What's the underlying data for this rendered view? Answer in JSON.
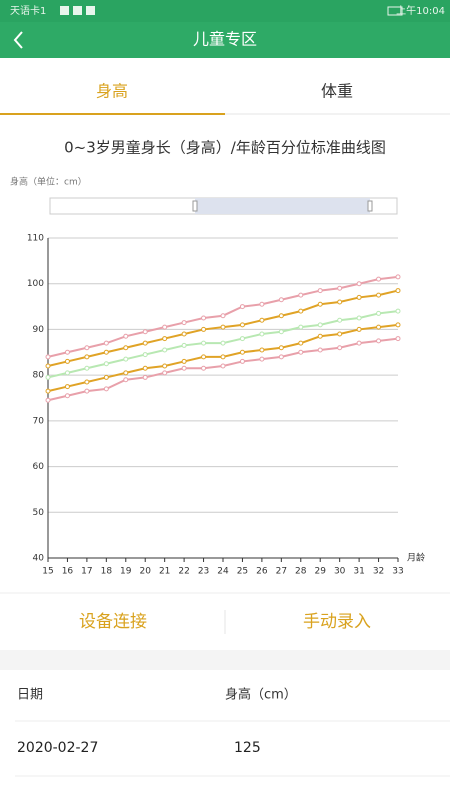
{
  "status_bar": {
    "carrier": "天语卡1",
    "time": "上午10:04"
  },
  "header": {
    "title": "儿童专区"
  },
  "tabs": [
    "身高",
    "体重"
  ],
  "chart_data": {
    "type": "line",
    "title": "0~3岁男童身长（身高）/年龄百分位标准曲线图",
    "y_label": "身高（单位：cm）",
    "x_label": "月龄",
    "x": [
      15,
      16,
      17,
      18,
      19,
      20,
      21,
      22,
      23,
      24,
      25,
      26,
      27,
      28,
      29,
      30,
      31,
      32,
      33
    ],
    "xlim": [
      15,
      33
    ],
    "xticks": [
      15,
      16,
      17,
      18,
      19,
      20,
      21,
      22,
      23,
      24,
      25,
      26,
      27,
      28,
      29,
      30,
      31,
      32,
      33
    ],
    "ylim": [
      40,
      110
    ],
    "yticks": [
      40,
      50,
      60,
      70,
      80,
      90,
      100,
      110
    ],
    "grid": true,
    "series": [
      {
        "color": "#e8a0aa",
        "values": [
          84,
          85,
          86,
          87,
          88.5,
          89.5,
          90.5,
          91.5,
          92.5,
          93,
          95,
          95.5,
          96.5,
          97.5,
          98.5,
          99,
          100,
          101,
          101.5
        ]
      },
      {
        "color": "#e0a326",
        "values": [
          82,
          83,
          84,
          85,
          86,
          87,
          88,
          89,
          90,
          90.5,
          91,
          92,
          93,
          94,
          95.5,
          96,
          97,
          97.5,
          98.5
        ]
      },
      {
        "color": "#b8e8b2",
        "values": [
          79.5,
          80.5,
          81.5,
          82.5,
          83.5,
          84.5,
          85.5,
          86.5,
          87,
          87,
          88,
          89,
          89.5,
          90.5,
          91,
          92,
          92.5,
          93.5,
          94
        ]
      },
      {
        "color": "#e0a326",
        "values": [
          76.5,
          77.5,
          78.5,
          79.5,
          80.5,
          81.5,
          82,
          83,
          84,
          84,
          85,
          85.5,
          86,
          87,
          88.5,
          89,
          90,
          90.5,
          91
        ]
      },
      {
        "color": "#e8a0aa",
        "values": [
          74.5,
          75.5,
          76.5,
          77,
          79,
          79.5,
          80.5,
          81.5,
          81.5,
          82,
          83,
          83.5,
          84,
          85,
          85.5,
          86,
          87,
          87.5,
          88
        ]
      }
    ]
  },
  "buttons": [
    "设备连接",
    "手动录入"
  ],
  "table": {
    "header": [
      "日期",
      "身高（cm）"
    ],
    "rows": [
      [
        "2020-02-27",
        "125"
      ]
    ]
  }
}
